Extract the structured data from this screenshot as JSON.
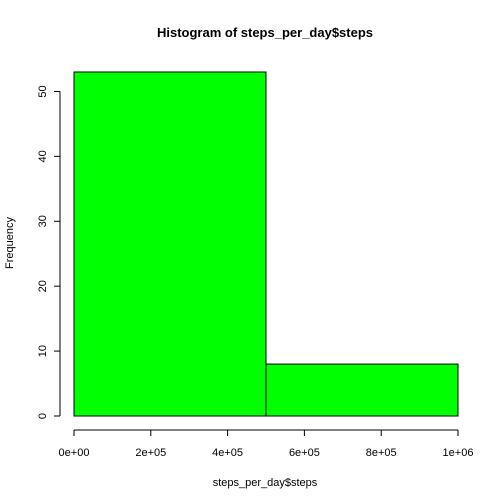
{
  "chart_data": {
    "type": "bar",
    "title": "Histogram of steps_per_day$steps",
    "xlabel": "steps_per_day$steps",
    "ylabel": "Frequency",
    "bins": [
      {
        "from": 0,
        "to": 500000,
        "count": 53
      },
      {
        "from": 500000,
        "to": 1000000,
        "count": 8
      }
    ],
    "xlim": [
      0,
      1000000
    ],
    "ylim": [
      0,
      53
    ],
    "x_ticks": [
      0,
      200000,
      400000,
      600000,
      800000,
      1000000
    ],
    "x_tick_labels": [
      "0e+00",
      "2e+05",
      "4e+05",
      "6e+05",
      "8e+05",
      "1e+06"
    ],
    "y_ticks": [
      0,
      10,
      20,
      30,
      40,
      50
    ],
    "y_tick_labels": [
      "0",
      "10",
      "20",
      "30",
      "40",
      "50"
    ],
    "bar_color": "#00ff00",
    "border_color": "#000000",
    "grid": false,
    "legend": "none"
  }
}
